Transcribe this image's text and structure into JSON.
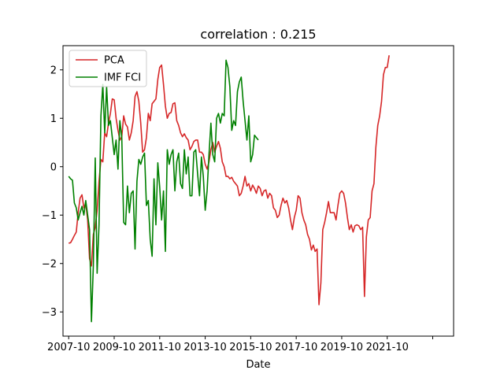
{
  "chart_data": {
    "type": "line",
    "title": "correlation : 0.215",
    "xlabel": "Date",
    "ylabel": "",
    "ylim": [
      -3.5,
      2.5
    ],
    "yticks": [
      -3,
      -2,
      -1,
      0,
      1,
      2
    ],
    "xlim": [
      "2007-07",
      "2024-09"
    ],
    "xticks": [
      "2007-10",
      "2009-10",
      "2011-10",
      "2013-10",
      "2015-10",
      "2017-10",
      "2019-10",
      "2021-10",
      "2023-10"
    ],
    "xtick_labels": [
      "2007-10",
      "2009-10",
      "2011-10",
      "2013-10",
      "2015-10",
      "2017-10",
      "2019-10",
      "2021-10",
      ""
    ],
    "grid": false,
    "legend": "top-left",
    "series": [
      {
        "name": "PCA",
        "color": "#d62728",
        "points": [
          [
            "2007-10",
            -1.58
          ],
          [
            "2007-11",
            -1.57
          ],
          [
            "2007-12",
            -1.5
          ],
          [
            "2008-01",
            -1.42
          ],
          [
            "2008-02",
            -1.35
          ],
          [
            "2008-03",
            -0.95
          ],
          [
            "2008-04",
            -0.65
          ],
          [
            "2008-05",
            -0.58
          ],
          [
            "2008-06",
            -0.85
          ],
          [
            "2008-07",
            -0.75
          ],
          [
            "2008-08",
            -1.1
          ],
          [
            "2008-09",
            -1.9
          ],
          [
            "2008-10",
            -2.05
          ],
          [
            "2008-11",
            -1.4
          ],
          [
            "2008-12",
            -1.25
          ],
          [
            "2009-01",
            -0.9
          ],
          [
            "2009-02",
            -0.3
          ],
          [
            "2009-03",
            0.15
          ],
          [
            "2009-04",
            0.1
          ],
          [
            "2009-05",
            0.7
          ],
          [
            "2009-06",
            0.62
          ],
          [
            "2009-07",
            0.9
          ],
          [
            "2009-08",
            1.1
          ],
          [
            "2009-09",
            1.4
          ],
          [
            "2009-10",
            1.38
          ],
          [
            "2009-11",
            1.0
          ],
          [
            "2009-12",
            0.75
          ],
          [
            "2010-01",
            0.55
          ],
          [
            "2010-02",
            0.62
          ],
          [
            "2010-03",
            1.05
          ],
          [
            "2010-04",
            0.88
          ],
          [
            "2010-05",
            0.82
          ],
          [
            "2010-06",
            0.55
          ],
          [
            "2010-07",
            0.7
          ],
          [
            "2010-08",
            0.95
          ],
          [
            "2010-09",
            1.45
          ],
          [
            "2010-10",
            1.55
          ],
          [
            "2010-11",
            1.35
          ],
          [
            "2010-12",
            0.9
          ],
          [
            "2011-01",
            0.3
          ],
          [
            "2011-02",
            0.35
          ],
          [
            "2011-03",
            0.6
          ],
          [
            "2011-04",
            1.1
          ],
          [
            "2011-05",
            0.95
          ],
          [
            "2011-06",
            1.3
          ],
          [
            "2011-07",
            1.35
          ],
          [
            "2011-08",
            1.4
          ],
          [
            "2011-09",
            1.8
          ],
          [
            "2011-10",
            2.05
          ],
          [
            "2011-11",
            2.1
          ],
          [
            "2011-12",
            1.7
          ],
          [
            "2012-01",
            1.25
          ],
          [
            "2012-02",
            1.0
          ],
          [
            "2012-03",
            1.1
          ],
          [
            "2012-04",
            1.12
          ],
          [
            "2012-05",
            1.3
          ],
          [
            "2012-06",
            1.32
          ],
          [
            "2012-07",
            0.95
          ],
          [
            "2012-08",
            0.85
          ],
          [
            "2012-09",
            0.7
          ],
          [
            "2012-10",
            0.62
          ],
          [
            "2012-11",
            0.68
          ],
          [
            "2012-12",
            0.6
          ],
          [
            "2013-01",
            0.55
          ],
          [
            "2013-02",
            0.35
          ],
          [
            "2013-03",
            0.42
          ],
          [
            "2013-04",
            0.52
          ],
          [
            "2013-05",
            0.55
          ],
          [
            "2013-06",
            0.55
          ],
          [
            "2013-07",
            0.3
          ],
          [
            "2013-08",
            0.3
          ],
          [
            "2013-09",
            0.25
          ],
          [
            "2013-10",
            0.05
          ],
          [
            "2013-11",
            -0.05
          ],
          [
            "2013-12",
            0.1
          ],
          [
            "2014-01",
            0.35
          ],
          [
            "2014-02",
            0.5
          ],
          [
            "2014-03",
            0.3
          ],
          [
            "2014-04",
            0.42
          ],
          [
            "2014-05",
            0.52
          ],
          [
            "2014-06",
            0.38
          ],
          [
            "2014-07",
            0.1
          ],
          [
            "2014-08",
            0.0
          ],
          [
            "2014-09",
            -0.2
          ],
          [
            "2014-10",
            -0.2
          ],
          [
            "2014-11",
            -0.25
          ],
          [
            "2014-12",
            -0.22
          ],
          [
            "2015-01",
            -0.3
          ],
          [
            "2015-02",
            -0.35
          ],
          [
            "2015-03",
            -0.4
          ],
          [
            "2015-04",
            -0.6
          ],
          [
            "2015-05",
            -0.55
          ],
          [
            "2015-06",
            -0.4
          ],
          [
            "2015-07",
            -0.2
          ],
          [
            "2015-08",
            -0.4
          ],
          [
            "2015-09",
            -0.35
          ],
          [
            "2015-10",
            -0.5
          ],
          [
            "2015-11",
            -0.38
          ],
          [
            "2015-12",
            -0.45
          ],
          [
            "2016-01",
            -0.55
          ],
          [
            "2016-02",
            -0.4
          ],
          [
            "2016-03",
            -0.45
          ],
          [
            "2016-04",
            -0.6
          ],
          [
            "2016-05",
            -0.5
          ],
          [
            "2016-06",
            -0.48
          ],
          [
            "2016-07",
            -0.65
          ],
          [
            "2016-08",
            -0.55
          ],
          [
            "2016-09",
            -0.6
          ],
          [
            "2016-10",
            -0.85
          ],
          [
            "2016-11",
            -0.9
          ],
          [
            "2016-12",
            -1.05
          ],
          [
            "2017-01",
            -1.0
          ],
          [
            "2017-02",
            -0.8
          ],
          [
            "2017-03",
            -0.65
          ],
          [
            "2017-04",
            -0.75
          ],
          [
            "2017-05",
            -0.7
          ],
          [
            "2017-06",
            -0.85
          ],
          [
            "2017-07",
            -1.1
          ],
          [
            "2017-08",
            -1.3
          ],
          [
            "2017-09",
            -1.05
          ],
          [
            "2017-10",
            -0.9
          ],
          [
            "2017-11",
            -0.6
          ],
          [
            "2017-12",
            -0.65
          ],
          [
            "2018-01",
            -0.95
          ],
          [
            "2018-02",
            -1.1
          ],
          [
            "2018-03",
            -1.2
          ],
          [
            "2018-04",
            -1.4
          ],
          [
            "2018-05",
            -1.5
          ],
          [
            "2018-06",
            -1.72
          ],
          [
            "2018-07",
            -1.62
          ],
          [
            "2018-08",
            -1.75
          ],
          [
            "2018-09",
            -1.7
          ],
          [
            "2018-10",
            -2.85
          ],
          [
            "2018-11",
            -2.4
          ],
          [
            "2018-12",
            -1.3
          ],
          [
            "2019-01",
            -1.15
          ],
          [
            "2019-02",
            -0.95
          ],
          [
            "2019-03",
            -0.72
          ],
          [
            "2019-04",
            -0.95
          ],
          [
            "2019-05",
            -0.95
          ],
          [
            "2019-06",
            -0.95
          ],
          [
            "2019-07",
            -1.1
          ],
          [
            "2019-08",
            -0.8
          ],
          [
            "2019-09",
            -0.55
          ],
          [
            "2019-10",
            -0.5
          ],
          [
            "2019-11",
            -0.55
          ],
          [
            "2019-12",
            -0.75
          ],
          [
            "2020-01",
            -1.05
          ],
          [
            "2020-02",
            -1.3
          ],
          [
            "2020-03",
            -1.2
          ],
          [
            "2020-04",
            -1.35
          ],
          [
            "2020-05",
            -1.22
          ],
          [
            "2020-06",
            -1.2
          ],
          [
            "2020-07",
            -1.22
          ],
          [
            "2020-08",
            -1.3
          ],
          [
            "2020-09",
            -1.25
          ],
          [
            "2020-10",
            -2.68
          ],
          [
            "2020-11",
            -1.45
          ],
          [
            "2020-12",
            -1.1
          ],
          [
            "2021-01",
            -1.05
          ],
          [
            "2021-02",
            -0.5
          ],
          [
            "2021-03",
            -0.35
          ],
          [
            "2021-04",
            0.4
          ],
          [
            "2021-05",
            0.85
          ],
          [
            "2021-06",
            1.05
          ],
          [
            "2021-07",
            1.35
          ],
          [
            "2021-08",
            1.9
          ],
          [
            "2021-09",
            2.05
          ],
          [
            "2021-10",
            2.05
          ],
          [
            "2021-11",
            2.3
          ]
        ]
      },
      {
        "name": "IMF FCI",
        "color": "#008000",
        "points": [
          [
            "2007-10",
            -0.2
          ],
          [
            "2007-11",
            -0.25
          ],
          [
            "2007-12",
            -0.28
          ],
          [
            "2008-01",
            -0.75
          ],
          [
            "2008-02",
            -0.85
          ],
          [
            "2008-03",
            -1.1
          ],
          [
            "2008-04",
            -0.95
          ],
          [
            "2008-05",
            -0.82
          ],
          [
            "2008-06",
            -1.0
          ],
          [
            "2008-07",
            -0.7
          ],
          [
            "2008-08",
            -1.0
          ],
          [
            "2008-09",
            -1.3
          ],
          [
            "2008-10",
            -3.2
          ],
          [
            "2008-11",
            -2.05
          ],
          [
            "2008-12",
            0.18
          ],
          [
            "2009-01",
            -2.2
          ],
          [
            "2009-02",
            -1.2
          ],
          [
            "2009-03",
            1.05
          ],
          [
            "2009-04",
            1.7
          ],
          [
            "2009-05",
            0.7
          ],
          [
            "2009-06",
            1.65
          ],
          [
            "2009-07",
            0.85
          ],
          [
            "2009-08",
            0.95
          ],
          [
            "2009-09",
            0.6
          ],
          [
            "2009-10",
            0.25
          ],
          [
            "2009-11",
            0.55
          ],
          [
            "2009-12",
            -0.05
          ],
          [
            "2010-01",
            0.95
          ],
          [
            "2010-02",
            0.6
          ],
          [
            "2010-03",
            -1.15
          ],
          [
            "2010-04",
            -1.2
          ],
          [
            "2010-05",
            -0.4
          ],
          [
            "2010-06",
            -0.95
          ],
          [
            "2010-07",
            -0.55
          ],
          [
            "2010-08",
            -0.5
          ],
          [
            "2010-09",
            -1.7
          ],
          [
            "2010-10",
            -0.3
          ],
          [
            "2010-11",
            0.15
          ],
          [
            "2010-12",
            0.05
          ],
          [
            "2011-01",
            0.2
          ],
          [
            "2011-02",
            0.28
          ],
          [
            "2011-03",
            -0.8
          ],
          [
            "2011-04",
            -0.7
          ],
          [
            "2011-05",
            -1.5
          ],
          [
            "2011-06",
            -1.85
          ],
          [
            "2011-07",
            -0.25
          ],
          [
            "2011-08",
            -1.2
          ],
          [
            "2011-09",
            0.08
          ],
          [
            "2011-10",
            -0.42
          ],
          [
            "2011-11",
            -1.1
          ],
          [
            "2011-12",
            -0.5
          ],
          [
            "2012-01",
            -1.75
          ],
          [
            "2012-02",
            0.35
          ],
          [
            "2012-03",
            0.05
          ],
          [
            "2012-04",
            0.25
          ],
          [
            "2012-05",
            0.35
          ],
          [
            "2012-06",
            -0.5
          ],
          [
            "2012-07",
            0.1
          ],
          [
            "2012-08",
            0.28
          ],
          [
            "2012-09",
            -0.35
          ],
          [
            "2012-10",
            -0.45
          ],
          [
            "2012-11",
            0.35
          ],
          [
            "2012-12",
            -0.15
          ],
          [
            "2013-01",
            0.2
          ],
          [
            "2013-02",
            -0.6
          ],
          [
            "2013-03",
            -0.6
          ],
          [
            "2013-04",
            0.3
          ],
          [
            "2013-05",
            0.35
          ],
          [
            "2013-06",
            -0.15
          ],
          [
            "2013-07",
            -0.6
          ],
          [
            "2013-08",
            0.2
          ],
          [
            "2013-09",
            -0.2
          ],
          [
            "2013-10",
            -0.9
          ],
          [
            "2013-11",
            -0.5
          ],
          [
            "2013-12",
            0.25
          ],
          [
            "2014-01",
            0.9
          ],
          [
            "2014-02",
            0.25
          ],
          [
            "2014-03",
            0.1
          ],
          [
            "2014-04",
            1.0
          ],
          [
            "2014-05",
            1.1
          ],
          [
            "2014-06",
            0.9
          ],
          [
            "2014-07",
            1.1
          ],
          [
            "2014-08",
            1.05
          ],
          [
            "2014-09",
            2.2
          ],
          [
            "2014-10",
            2.05
          ],
          [
            "2014-11",
            1.65
          ],
          [
            "2014-12",
            0.75
          ],
          [
            "2015-01",
            0.95
          ],
          [
            "2015-02",
            0.85
          ],
          [
            "2015-03",
            1.55
          ],
          [
            "2015-04",
            1.75
          ],
          [
            "2015-05",
            1.85
          ],
          [
            "2015-06",
            1.35
          ],
          [
            "2015-07",
            0.95
          ],
          [
            "2015-08",
            0.55
          ],
          [
            "2015-09",
            1.05
          ],
          [
            "2015-10",
            0.1
          ],
          [
            "2015-11",
            0.25
          ],
          [
            "2015-12",
            0.65
          ],
          [
            "2016-01",
            0.6
          ],
          [
            "2016-02",
            0.55
          ]
        ]
      }
    ]
  }
}
